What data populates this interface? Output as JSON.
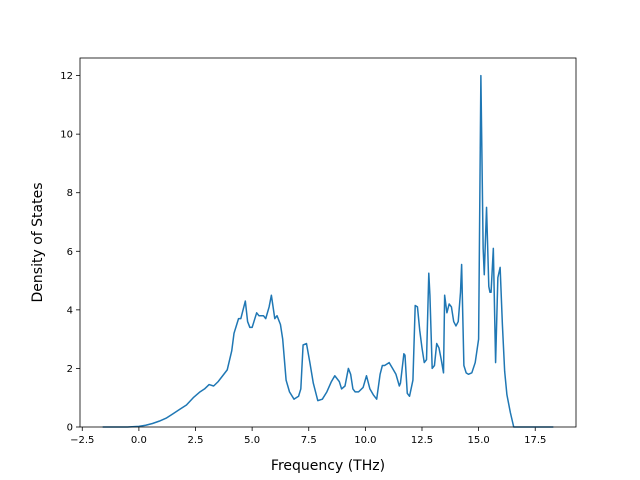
{
  "chart_data": {
    "type": "line",
    "xlabel": "Frequency (THz)",
    "ylabel": "Density of States",
    "xlim": [
      -2.6,
      19.3
    ],
    "ylim": [
      0,
      12.6
    ],
    "grid": false,
    "x_ticks": [
      -2.5,
      0.0,
      2.5,
      5.0,
      7.5,
      10.0,
      12.5,
      15.0,
      17.5
    ],
    "x_tick_labels": [
      "−2.5",
      "0.0",
      "2.5",
      "5.0",
      "7.5",
      "10.0",
      "12.5",
      "15.0",
      "17.5"
    ],
    "y_ticks": [
      0,
      2,
      4,
      6,
      8,
      10,
      12
    ],
    "y_tick_labels": [
      "0",
      "2",
      "4",
      "6",
      "8",
      "10",
      "12"
    ],
    "colors": {
      "line": "#1f77b4"
    },
    "series": [
      {
        "x": [
          -1.6,
          -0.5,
          0.0,
          0.3,
          0.6,
          0.9,
          1.2,
          1.5,
          1.8,
          2.1,
          2.4,
          2.7,
          2.9,
          3.1,
          3.3,
          3.5,
          3.7,
          3.9,
          4.1,
          4.2,
          4.4,
          4.5,
          4.7,
          4.8,
          4.9,
          5.0,
          5.2,
          5.3,
          5.5,
          5.6,
          5.75,
          5.85,
          6.0,
          6.1,
          6.25,
          6.35,
          6.5,
          6.65,
          6.85,
          7.05,
          7.15,
          7.25,
          7.4,
          7.55,
          7.7,
          7.9,
          8.1,
          8.3,
          8.5,
          8.65,
          8.85,
          8.95,
          9.1,
          9.25,
          9.35,
          9.45,
          9.55,
          9.7,
          9.9,
          10.05,
          10.2,
          10.35,
          10.5,
          10.65,
          10.75,
          10.85,
          11.05,
          11.2,
          11.35,
          11.5,
          11.55,
          11.7,
          11.75,
          11.85,
          11.95,
          12.1,
          12.2,
          12.3,
          12.4,
          12.5,
          12.6,
          12.7,
          12.8,
          12.85,
          12.95,
          13.05,
          13.15,
          13.25,
          13.35,
          13.45,
          13.5,
          13.6,
          13.7,
          13.8,
          13.9,
          14.0,
          14.1,
          14.2,
          14.25,
          14.35,
          14.45,
          14.55,
          14.7,
          14.85,
          15.0,
          15.1,
          15.2,
          15.25,
          15.35,
          15.45,
          15.5,
          15.55,
          15.65,
          15.75,
          15.85,
          15.95,
          16.05,
          16.15,
          16.25,
          16.4,
          16.55,
          16.7,
          16.8,
          17.0,
          17.5,
          18.3
        ],
        "y": [
          0.0,
          0.0,
          0.02,
          0.06,
          0.12,
          0.2,
          0.3,
          0.45,
          0.6,
          0.75,
          1.0,
          1.2,
          1.3,
          1.45,
          1.4,
          1.55,
          1.75,
          1.95,
          2.6,
          3.2,
          3.7,
          3.7,
          4.3,
          3.6,
          3.4,
          3.4,
          3.9,
          3.8,
          3.8,
          3.7,
          4.1,
          4.5,
          3.7,
          3.8,
          3.5,
          3.0,
          1.6,
          1.2,
          0.95,
          1.05,
          1.3,
          2.8,
          2.85,
          2.2,
          1.5,
          0.9,
          0.95,
          1.2,
          1.55,
          1.75,
          1.55,
          1.3,
          1.4,
          2.0,
          1.8,
          1.3,
          1.2,
          1.2,
          1.35,
          1.75,
          1.3,
          1.1,
          0.95,
          1.8,
          2.1,
          2.1,
          2.2,
          2.0,
          1.8,
          1.4,
          1.5,
          2.5,
          2.45,
          1.15,
          1.05,
          1.6,
          4.15,
          4.1,
          3.3,
          2.7,
          2.2,
          2.3,
          5.25,
          4.5,
          2.0,
          2.1,
          2.85,
          2.7,
          2.3,
          1.85,
          4.5,
          3.9,
          4.2,
          4.1,
          3.6,
          3.45,
          3.6,
          4.6,
          5.55,
          2.1,
          1.85,
          1.8,
          1.85,
          2.2,
          3.0,
          12.0,
          6.1,
          5.2,
          7.5,
          4.8,
          4.6,
          4.6,
          6.1,
          2.2,
          5.1,
          5.45,
          3.5,
          1.9,
          1.1,
          0.5,
          0.0,
          0.0,
          0.0,
          0.0,
          0.0,
          0.0
        ]
      }
    ]
  }
}
